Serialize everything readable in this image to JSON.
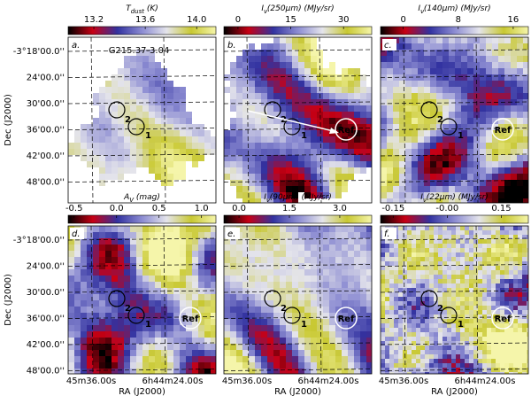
{
  "chart_data": [
    {
      "type": "image",
      "label": "a.",
      "title": [
        "T",
        "dust",
        " (K)"
      ],
      "clim": [
        13.0,
        14.15
      ],
      "cticks": [
        13.2,
        13.6,
        {
          "value": 14.0,
          "label": "14.0"
        }
      ],
      "source": "G215.37-3.04",
      "ref": false
    },
    {
      "type": "image",
      "label": "b.",
      "title": [
        "I",
        "ν",
        "(250μm) (MJy/sr)"
      ],
      "clim": [
        -4,
        38
      ],
      "cticks": [
        0,
        15,
        30
      ],
      "ref": true
    },
    {
      "type": "image",
      "label": "c.",
      "title": [
        "I",
        "ν",
        "(140μm) (MJy/sr)"
      ],
      "clim": [
        -3.3,
        18.2
      ],
      "cticks": [
        0,
        8,
        16
      ],
      "ref": true
    },
    {
      "type": "image",
      "label": "d.",
      "title": [
        "A",
        "V",
        " (mag)"
      ],
      "clim": [
        -0.57,
        1.17
      ],
      "cticks": [
        -0.5,
        {
          "value": 0.0,
          "label": "0.0"
        },
        0.5,
        {
          "value": 1.0,
          "label": "1.0"
        }
      ],
      "ref": true
    },
    {
      "type": "image",
      "label": "e.",
      "title": [
        "I",
        "ν",
        "(90μm) (MJy/sr)"
      ],
      "clim": [
        -0.45,
        3.95
      ],
      "cticks": [
        {
          "value": 0.0,
          "label": "0.0"
        },
        1.5,
        {
          "value": 3.0,
          "label": "3.0"
        }
      ],
      "ref": true
    },
    {
      "type": "image",
      "label": "f.",
      "title": [
        "I",
        "ν",
        "(22μm) (MJy/sr)"
      ],
      "clim": [
        -0.185,
        0.225
      ],
      "cticks": [
        -0.15,
        {
          "value": 0.0,
          "label": "-0.00"
        },
        0.15
      ],
      "ref": true
    }
  ],
  "ylabel": "Dec (J2000)",
  "xlabel": "RA (J2000)",
  "yticks": [
    "-3°18'00.0''",
    "24'00.0''",
    "30'00.0''",
    "36'00.0''",
    "42'00.0''",
    "48'00.0''"
  ],
  "xticks": [
    "45m36.00s",
    "6h44m24.00s"
  ],
  "markers": [
    "1",
    "2",
    "Ref"
  ]
}
